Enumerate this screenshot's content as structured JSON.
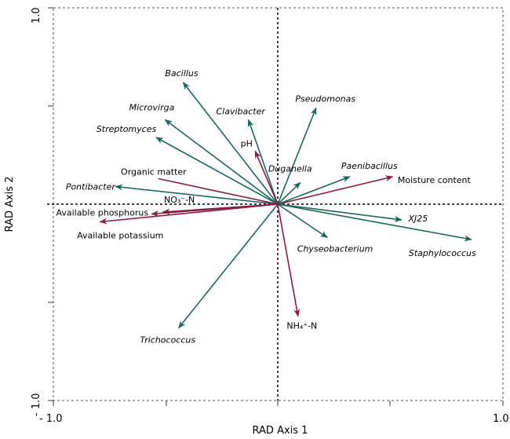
{
  "chart_data": {
    "type": "biplot",
    "title": "",
    "xlabel": "RAD Axis 1",
    "ylabel": "RAD Axis 2",
    "xlim": [
      -1.0,
      1.0
    ],
    "ylim": [
      -1.0,
      1.0
    ],
    "x_tick_labels": [
      "- 1.0",
      "1.0"
    ],
    "y_tick_labels": [
      "1.0",
      "- 1.0"
    ],
    "grid": false,
    "colors": {
      "taxa": "#17695f",
      "environment": "#8e1b3d"
    },
    "series": [
      {
        "group": "taxa",
        "points": [
          {
            "name": "Bacillus",
            "x": -0.42,
            "y": 0.62
          },
          {
            "name": "Microvirga",
            "x": -0.5,
            "y": 0.43
          },
          {
            "name": "Streptomyces",
            "x": -0.54,
            "y": 0.34
          },
          {
            "name": "Clavibacter",
            "x": -0.13,
            "y": 0.43
          },
          {
            "name": "Pseudomonas",
            "x": 0.17,
            "y": 0.49
          },
          {
            "name": "Duganella",
            "x": 0.1,
            "y": 0.11
          },
          {
            "name": "Paenibacillus",
            "x": 0.32,
            "y": 0.14
          },
          {
            "name": "Pontibacter",
            "x": -0.72,
            "y": 0.09
          },
          {
            "name": "XJ25",
            "x": 0.55,
            "y": -0.08
          },
          {
            "name": "Chyseobacterium",
            "x": 0.22,
            "y": -0.17
          },
          {
            "name": "Staphylococcus",
            "x": 0.86,
            "y": -0.18
          },
          {
            "name": "Trichococcus",
            "x": -0.44,
            "y": -0.63
          }
        ]
      },
      {
        "group": "environment",
        "points": [
          {
            "name": "pH",
            "x": -0.1,
            "y": 0.27
          },
          {
            "name": "Organic matter",
            "x": -0.53,
            "y": 0.13
          },
          {
            "name": "Moisture content",
            "x": 0.51,
            "y": 0.14
          },
          {
            "name": "NO₃⁻-N",
            "x": -0.51,
            "y": -0.04
          },
          {
            "name": "Available phosphorus",
            "x": -0.56,
            "y": -0.05
          },
          {
            "name": "Available potassium",
            "x": -0.79,
            "y": -0.09
          },
          {
            "name": "NH₄⁺-N",
            "x": 0.09,
            "y": -0.57
          }
        ]
      }
    ]
  }
}
